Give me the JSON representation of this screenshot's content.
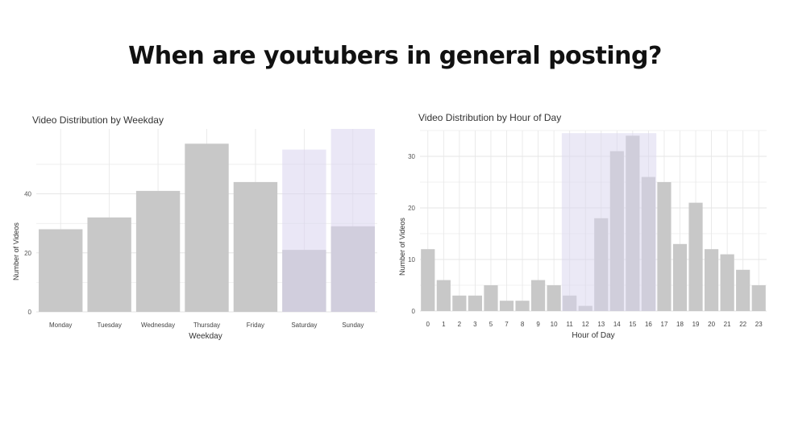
{
  "slide": {
    "title": "When are youtubers in general posting?"
  },
  "colors": {
    "bar": "#c8c8c8",
    "grid": "#e6e6e6",
    "highlight": "#d8d3ee",
    "text": "#333333"
  },
  "chart_data": [
    {
      "type": "bar",
      "title": "Video Distribution by Weekday",
      "xlabel": "Weekday",
      "ylabel": "Number of Videos",
      "categories": [
        "Monday",
        "Tuesday",
        "Wednesday",
        "Thursday",
        "Friday",
        "Saturday",
        "Sunday"
      ],
      "values": [
        28,
        32,
        41,
        57,
        44,
        21,
        29
      ],
      "ylim": [
        0,
        62
      ],
      "yticks": [
        0,
        20,
        40
      ],
      "grid": true,
      "highlight": {
        "categories": [
          "Saturday",
          "Sunday"
        ],
        "values": [
          55,
          62
        ]
      }
    },
    {
      "type": "bar",
      "title": "Video Distribution by Hour of Day",
      "xlabel": "Hour of Day",
      "ylabel": "Number of Videos",
      "categories": [
        "0",
        "1",
        "2",
        "3",
        "5",
        "7",
        "8",
        "9",
        "10",
        "11",
        "12",
        "13",
        "14",
        "15",
        "16",
        "17",
        "18",
        "19",
        "20",
        "21",
        "22",
        "23"
      ],
      "values": [
        12,
        6,
        3,
        3,
        5,
        2,
        2,
        6,
        5,
        3,
        1,
        18,
        31,
        34,
        26,
        25,
        13,
        21,
        12,
        11,
        8,
        5
      ],
      "ylim": [
        0,
        35
      ],
      "yticks": [
        0,
        10,
        20,
        30
      ],
      "grid": true,
      "highlight": {
        "from": "11",
        "to": "16",
        "top": 34.5
      }
    }
  ]
}
